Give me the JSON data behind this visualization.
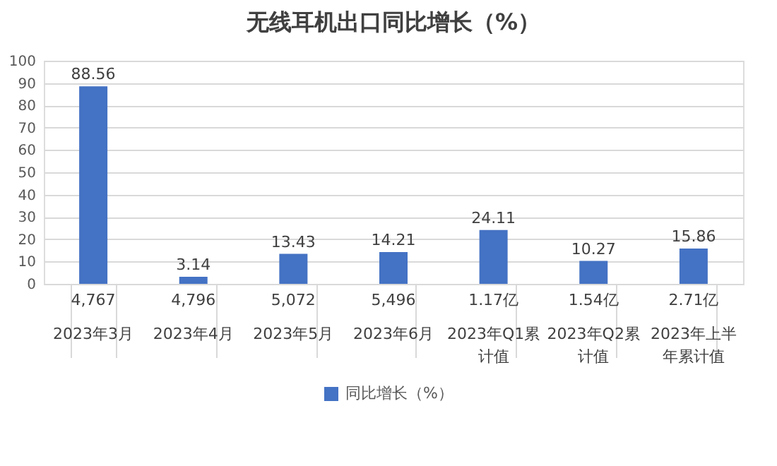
{
  "chart_data": {
    "type": "bar",
    "title": "无线耳机出口同比增长（%）",
    "categories": [
      "2023年3月",
      "2023年4月",
      "2023年5月",
      "2023年6月",
      "2023年Q1累计值",
      "2023年Q2累计值",
      "2023年上半年累计值"
    ],
    "series": [
      {
        "name": "同比增长（%）",
        "color": "#4472c4",
        "values": [
          88.56,
          3.14,
          13.43,
          14.21,
          24.11,
          10.27,
          15.86
        ]
      }
    ],
    "annotations": [
      "4,767",
      "4,796",
      "5,072",
      "5,496",
      "1.17亿",
      "1.54亿",
      "2.71亿"
    ],
    "ylim": [
      0,
      100
    ],
    "yticks": [
      0,
      10,
      20,
      30,
      40,
      50,
      60,
      70,
      80,
      90,
      100
    ],
    "grid": "y",
    "data_labels": true,
    "legend": "bottom"
  }
}
